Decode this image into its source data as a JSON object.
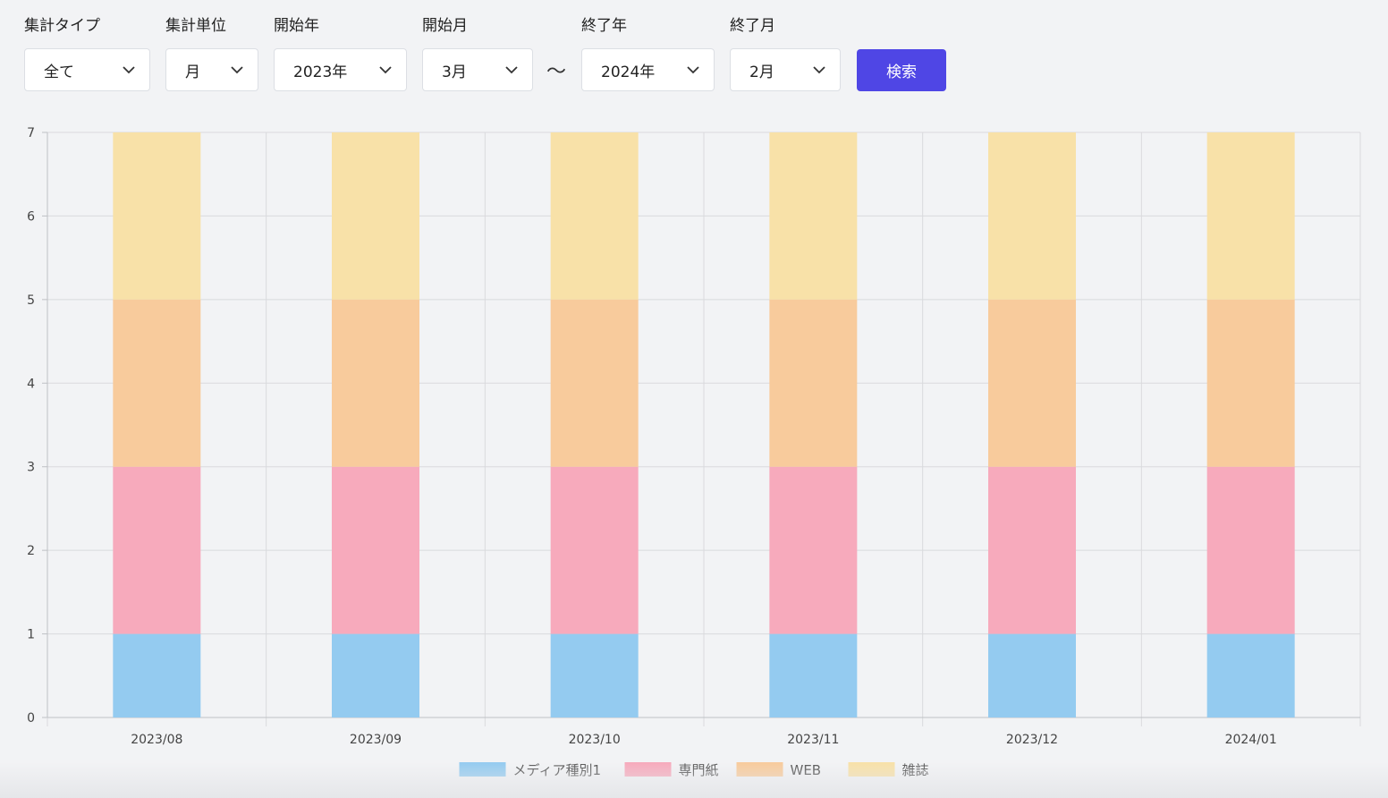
{
  "filters": {
    "type_label": "集計タイプ",
    "type_value": "全て",
    "unit_label": "集計単位",
    "unit_value": "月",
    "start_year_label": "開始年",
    "start_year_value": "2023年",
    "start_month_label": "開始月",
    "start_month_value": "3月",
    "range_separator": "〜",
    "end_year_label": "終了年",
    "end_year_value": "2024年",
    "end_month_label": "終了月",
    "end_month_value": "2月",
    "search_label": "検索"
  },
  "colors": {
    "accent": "#4f46e5",
    "grid": "#d9dadd",
    "axis": "#bfc1c5"
  },
  "chart_data": {
    "type": "bar",
    "stacked": true,
    "categories": [
      "2023/08",
      "2023/09",
      "2023/10",
      "2023/11",
      "2023/12",
      "2024/01"
    ],
    "series": [
      {
        "name": "メディア種別1",
        "color": "#94cbf0",
        "values": [
          1,
          1,
          1,
          1,
          1,
          1
        ]
      },
      {
        "name": "専門紙",
        "color": "#f7aabc",
        "values": [
          2,
          2,
          2,
          2,
          2,
          2
        ]
      },
      {
        "name": "WEB",
        "color": "#f8cb9c",
        "values": [
          2,
          2,
          2,
          2,
          2,
          2
        ]
      },
      {
        "name": "雑誌",
        "color": "#f8e1a8",
        "values": [
          2,
          2,
          2,
          2,
          2,
          2
        ]
      }
    ],
    "ylim": [
      0,
      7
    ],
    "yticks": [
      0,
      1,
      2,
      3,
      4,
      5,
      6,
      7
    ],
    "grid": true,
    "legend_position": "bottom"
  }
}
